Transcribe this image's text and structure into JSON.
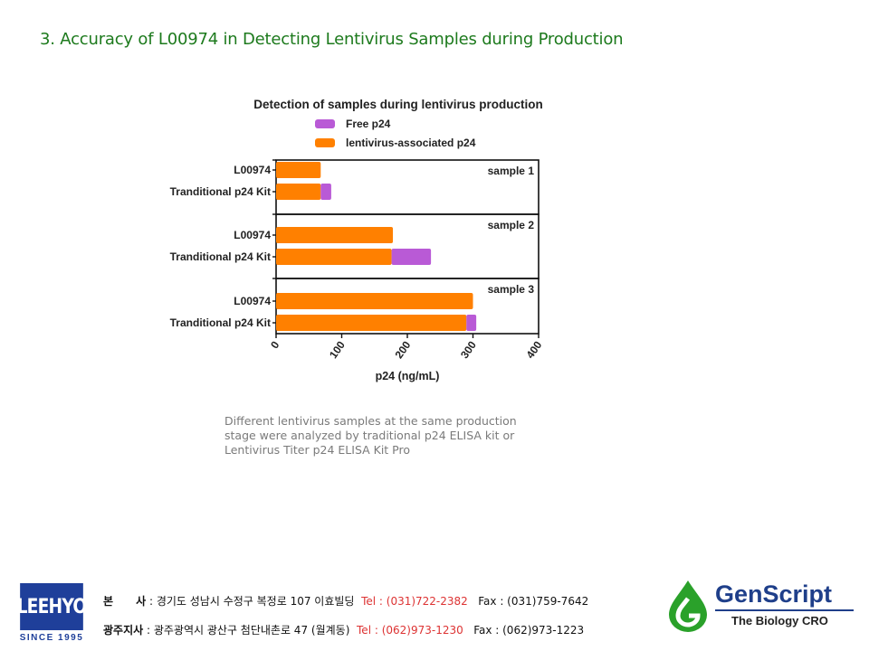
{
  "heading": "3. Accuracy of L00974 in Detecting Lentivirus Samples during Production",
  "chart_data": {
    "type": "bar",
    "orientation": "horizontal",
    "stacked": true,
    "title": "Detection of samples during lentivirus production",
    "xlabel": "p24 (ng/mL)",
    "ylabel": "",
    "xlim": [
      0,
      400
    ],
    "xticks": [
      "0",
      "100",
      "200",
      "300",
      "400"
    ],
    "legend": {
      "placement": "top",
      "entries": [
        "Free p24",
        "lentivirus-associated p24"
      ]
    },
    "colors": {
      "Free p24": "#b95ad6",
      "lentivirus-associated p24": "#ff8000"
    },
    "groups": [
      {
        "label": "sample 1",
        "categories": [
          "L00974",
          "Tranditional p24 Kit"
        ],
        "lentivirus_associated": [
          68,
          68
        ],
        "free": [
          0,
          16
        ]
      },
      {
        "label": "sample 2",
        "categories": [
          "L00974",
          "Tranditional p24 Kit"
        ],
        "lentivirus_associated": [
          178,
          176
        ],
        "free": [
          0,
          60
        ]
      },
      {
        "label": "sample 3",
        "categories": [
          "L00974",
          "Tranditional p24 Kit"
        ],
        "lentivirus_associated": [
          300,
          290
        ],
        "free": [
          0,
          15
        ]
      }
    ]
  },
  "caption": "Different lentivirus samples at the same production stage were analyzed by traditional p24 ELISA kit or Lentivirus Titer p24 ELISA Kit Pro",
  "footer": {
    "leehyo_logo": "LEEHYO",
    "leehyo_since": "SINCE 1995",
    "hq_label": "본      사",
    "hq_address": " : 경기도 성남시 수정구 복정로 107 이효빌딩  ",
    "hq_tel": "Tel : (031)722-2382",
    "hq_fax": "   Fax : (031)759-7642",
    "branch_label": "광주지사",
    "branch_address": " : 광주광역시 광산구 첨단내촌로 47 (월계동)  ",
    "branch_tel": "Tel : (062)973-1230",
    "branch_fax": "   Fax : (062)973-1223",
    "genscript_name": "GenScript",
    "genscript_tagline": "The Biology CRO"
  }
}
